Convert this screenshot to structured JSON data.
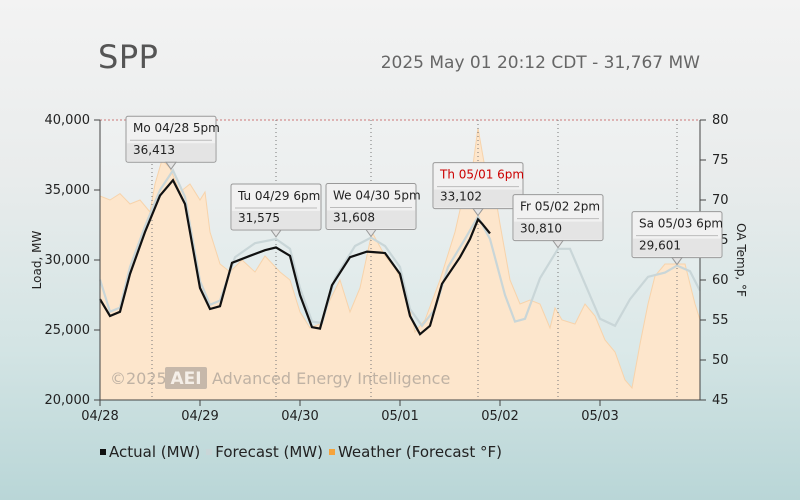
{
  "header": {
    "title": "SPP",
    "status": "2025 May 01 20:12 CDT - 31,767 MW"
  },
  "watermark": {
    "year": "©2025",
    "logo": "AEI",
    "company": "Advanced Energy Intelligence"
  },
  "legend": [
    {
      "label": "Actual (MW)",
      "color": "#111111"
    },
    {
      "label": "Forecast (MW)",
      "color": "#c9d6d8"
    },
    {
      "label": "Weather (Forecast °F)",
      "color": "#f5a33b"
    }
  ],
  "chart_data": {
    "type": "line",
    "x_tick_labels": [
      "04/28",
      "04/29",
      "04/30",
      "05/01",
      "05/02",
      "05/03"
    ],
    "x_range_days": [
      0,
      6
    ],
    "ylabel": "Load, MW",
    "y2label": "OA Temp, °F",
    "ylim": [
      20000,
      40000
    ],
    "y_ticks": [
      "20,000",
      "25,000",
      "30,000",
      "35,000",
      "40,000"
    ],
    "y2lim": [
      45,
      80
    ],
    "y2_ticks": [
      "45",
      "50",
      "55",
      "60",
      "65",
      "70",
      "75",
      "80"
    ],
    "colors": {
      "actual": "#111111",
      "forecast": "#c9d6d8",
      "weather_fill": "#fde6cc",
      "weather_line": "#f7d3ab"
    },
    "series": [
      {
        "name": "Actual (MW)",
        "points": [
          [
            0.0,
            27200
          ],
          [
            0.1,
            26000
          ],
          [
            0.2,
            26300
          ],
          [
            0.3,
            29000
          ],
          [
            0.45,
            32000
          ],
          [
            0.6,
            34600
          ],
          [
            0.73,
            35700
          ],
          [
            0.85,
            34000
          ],
          [
            1.0,
            28000
          ],
          [
            1.1,
            26500
          ],
          [
            1.2,
            26700
          ],
          [
            1.32,
            29800
          ],
          [
            1.5,
            30300
          ],
          [
            1.65,
            30700
          ],
          [
            1.76,
            30900
          ],
          [
            1.9,
            30300
          ],
          [
            2.0,
            27500
          ],
          [
            2.12,
            25200
          ],
          [
            2.2,
            25100
          ],
          [
            2.32,
            28200
          ],
          [
            2.5,
            30200
          ],
          [
            2.67,
            30600
          ],
          [
            2.85,
            30500
          ],
          [
            3.0,
            29000
          ],
          [
            3.1,
            26000
          ],
          [
            3.2,
            24700
          ],
          [
            3.3,
            25300
          ],
          [
            3.42,
            28300
          ],
          [
            3.6,
            30200
          ],
          [
            3.7,
            31500
          ],
          [
            3.78,
            32900
          ],
          [
            3.82,
            32600
          ],
          [
            3.9,
            31900
          ]
        ]
      },
      {
        "name": "Forecast (MW)",
        "points": [
          [
            0.0,
            28600
          ],
          [
            0.1,
            26300
          ],
          [
            0.2,
            26600
          ],
          [
            0.3,
            29500
          ],
          [
            0.45,
            32400
          ],
          [
            0.6,
            35000
          ],
          [
            0.73,
            36400
          ],
          [
            0.85,
            34500
          ],
          [
            1.0,
            28500
          ],
          [
            1.1,
            26800
          ],
          [
            1.2,
            27100
          ],
          [
            1.35,
            30200
          ],
          [
            1.55,
            31200
          ],
          [
            1.76,
            31500
          ],
          [
            1.9,
            30800
          ],
          [
            2.0,
            28000
          ],
          [
            2.12,
            25600
          ],
          [
            2.22,
            25500
          ],
          [
            2.35,
            28700
          ],
          [
            2.55,
            31000
          ],
          [
            2.71,
            31600
          ],
          [
            2.85,
            31000
          ],
          [
            3.0,
            29500
          ],
          [
            3.1,
            26500
          ],
          [
            3.22,
            25300
          ],
          [
            3.35,
            26500
          ],
          [
            3.48,
            29500
          ],
          [
            3.65,
            31500
          ],
          [
            3.78,
            33100
          ],
          [
            3.9,
            31500
          ],
          [
            4.05,
            27500
          ],
          [
            4.15,
            25600
          ],
          [
            4.25,
            25800
          ],
          [
            4.4,
            28700
          ],
          [
            4.58,
            30800
          ],
          [
            4.7,
            30800
          ],
          [
            4.85,
            28300
          ],
          [
            5.0,
            25800
          ],
          [
            5.15,
            25300
          ],
          [
            5.3,
            27200
          ],
          [
            5.48,
            28800
          ],
          [
            5.65,
            29100
          ],
          [
            5.77,
            29600
          ],
          [
            5.9,
            29200
          ],
          [
            6.0,
            27800
          ]
        ]
      },
      {
        "name": "Weather (Forecast °F)",
        "points": [
          [
            0.0,
            70.5
          ],
          [
            0.1,
            70.0
          ],
          [
            0.2,
            70.8
          ],
          [
            0.3,
            69.5
          ],
          [
            0.4,
            70.0
          ],
          [
            0.5,
            68.5
          ],
          [
            0.55,
            72.0
          ],
          [
            0.62,
            75.0
          ],
          [
            0.7,
            74.0
          ],
          [
            0.8,
            71.0
          ],
          [
            0.9,
            72.0
          ],
          [
            1.0,
            70.0
          ],
          [
            1.05,
            71.0
          ],
          [
            1.1,
            66.0
          ],
          [
            1.2,
            62.0
          ],
          [
            1.3,
            61.0
          ],
          [
            1.42,
            62.5
          ],
          [
            1.55,
            61.0
          ],
          [
            1.65,
            63.0
          ],
          [
            1.8,
            61.0
          ],
          [
            1.9,
            60.0
          ],
          [
            2.0,
            56.0
          ],
          [
            2.1,
            54.0
          ],
          [
            2.2,
            54.5
          ],
          [
            2.3,
            57.5
          ],
          [
            2.4,
            60.0
          ],
          [
            2.5,
            56.0
          ],
          [
            2.6,
            59.0
          ],
          [
            2.72,
            66.0
          ],
          [
            2.85,
            63.0
          ],
          [
            2.95,
            61.5
          ],
          [
            3.05,
            59.0
          ],
          [
            3.15,
            53.5
          ],
          [
            3.25,
            55.0
          ],
          [
            3.4,
            60.0
          ],
          [
            3.55,
            66.0
          ],
          [
            3.65,
            71.5
          ],
          [
            3.72,
            73.5
          ],
          [
            3.78,
            79.0
          ],
          [
            3.85,
            74.0
          ],
          [
            3.92,
            73.0
          ],
          [
            4.0,
            67.0
          ],
          [
            4.1,
            60.0
          ],
          [
            4.2,
            57.0
          ],
          [
            4.3,
            57.5
          ],
          [
            4.4,
            57.0
          ],
          [
            4.5,
            54.0
          ],
          [
            4.55,
            56.5
          ],
          [
            4.62,
            55.0
          ],
          [
            4.75,
            54.5
          ],
          [
            4.85,
            57.0
          ],
          [
            4.95,
            55.5
          ],
          [
            5.05,
            52.5
          ],
          [
            5.15,
            51.0
          ],
          [
            5.25,
            47.5
          ],
          [
            5.32,
            46.5
          ],
          [
            5.4,
            52.0
          ],
          [
            5.48,
            57.0
          ],
          [
            5.55,
            60.5
          ],
          [
            5.65,
            62.0
          ],
          [
            5.75,
            62.0
          ],
          [
            5.85,
            62.0
          ],
          [
            5.95,
            57.0
          ],
          [
            6.0,
            55.0
          ]
        ]
      }
    ],
    "current_day_marks": [
      0.52,
      1.76,
      2.71,
      3.78,
      4.58,
      5.77
    ],
    "callouts": [
      {
        "label": "Mo 04/28 5pm",
        "value": "36,413",
        "x": 0.71,
        "y": 36413,
        "highlight": false
      },
      {
        "label": "Tu 04/29 6pm",
        "value": "31,575",
        "x": 1.76,
        "y": 31575,
        "highlight": false
      },
      {
        "label": "We 04/30 5pm",
        "value": "31,608",
        "x": 2.71,
        "y": 31608,
        "highlight": false
      },
      {
        "label": "Th 05/01 6pm",
        "value": "33,102",
        "x": 3.78,
        "y": 33102,
        "highlight": true
      },
      {
        "label": "Fr 05/02 2pm",
        "value": "30,810",
        "x": 4.58,
        "y": 30810,
        "highlight": false
      },
      {
        "label": "Sa 05/03 6pm",
        "value": "29,601",
        "x": 5.77,
        "y": 29601,
        "highlight": false
      }
    ],
    "highlight_color": "#cc0000"
  }
}
